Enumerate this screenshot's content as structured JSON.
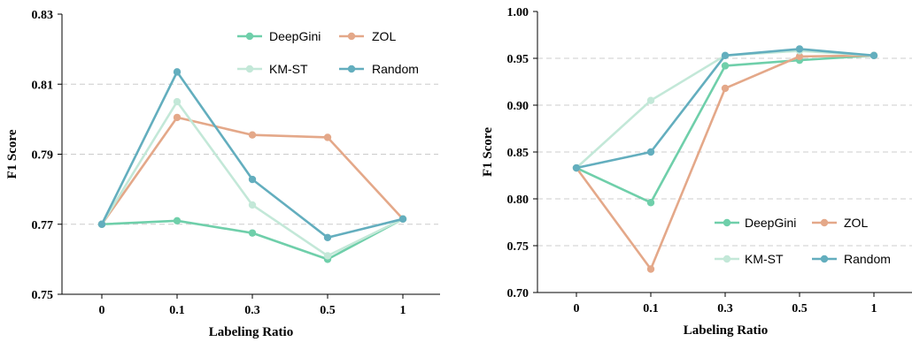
{
  "chart_data": [
    {
      "type": "line",
      "categories": [
        "0",
        "0.1",
        "0.3",
        "0.5",
        "1"
      ],
      "xlabel": "Labeling Ratio",
      "ylabel": "F1 Score",
      "ylim": [
        0.75,
        0.83
      ],
      "yticks": [
        "0.75",
        "0.77",
        "0.79",
        "0.81",
        "0.83"
      ],
      "grid": "horizontal dashed",
      "legend_position": "top-right",
      "series": [
        {
          "name": "DeepGini",
          "color": "#6fcfaa",
          "values": [
            0.77,
            0.771,
            0.7675,
            0.76,
            0.7715
          ]
        },
        {
          "name": "ZOL",
          "color": "#e4a889",
          "values": [
            0.77,
            0.8005,
            0.7955,
            0.7948,
            0.7715
          ]
        },
        {
          "name": "KM-ST",
          "color": "#c3e8d8",
          "values": [
            0.77,
            0.805,
            0.7755,
            0.761,
            0.7715
          ]
        },
        {
          "name": "Random",
          "color": "#63aebe",
          "values": [
            0.77,
            0.8135,
            0.7828,
            0.7662,
            0.7715
          ]
        }
      ]
    },
    {
      "type": "line",
      "categories": [
        "0",
        "0.1",
        "0.3",
        "0.5",
        "1"
      ],
      "xlabel": "Labeling Ratio",
      "ylabel": "F1 Score",
      "ylim": [
        0.7,
        1.0
      ],
      "yticks": [
        "0.70",
        "0.75",
        "0.80",
        "0.85",
        "0.90",
        "0.95",
        "1.00"
      ],
      "grid": "horizontal dashed",
      "legend_position": "bottom-right",
      "series": [
        {
          "name": "DeepGini",
          "color": "#6fcfaa",
          "values": [
            0.833,
            0.796,
            0.942,
            0.948,
            0.953
          ]
        },
        {
          "name": "ZOL",
          "color": "#e4a889",
          "values": [
            0.833,
            0.725,
            0.918,
            0.952,
            0.953
          ]
        },
        {
          "name": "KM-ST",
          "color": "#c3e8d8",
          "values": [
            0.833,
            0.905,
            0.953,
            0.958,
            0.953
          ]
        },
        {
          "name": "Random",
          "color": "#63aebe",
          "values": [
            0.833,
            0.85,
            0.953,
            0.96,
            0.953
          ]
        }
      ]
    }
  ]
}
